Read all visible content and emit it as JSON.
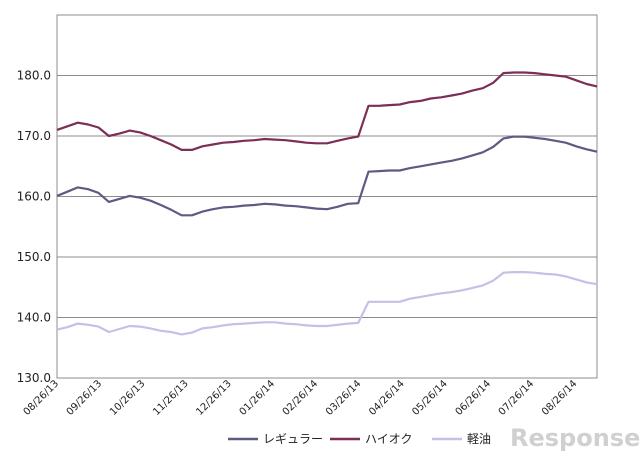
{
  "chart_data": {
    "type": "line",
    "title": "",
    "xlabel": "",
    "ylabel": "",
    "ylim": [
      130,
      190
    ],
    "yticks": [
      "130.0",
      "140.0",
      "150.0",
      "160.0",
      "170.0",
      "180.0"
    ],
    "grid": true,
    "legend_position": "bottom",
    "x_tick_labels": [
      "08/26/13",
      "09/26/13",
      "10/26/13",
      "11/26/13",
      "12/26/13",
      "01/26/14",
      "02/26/14",
      "03/26/14",
      "04/26/14",
      "05/26/14",
      "06/26/14",
      "07/26/14",
      "08/26/14"
    ],
    "series": [
      {
        "name": "レギュラー",
        "color": "#5c5b82",
        "values": [
          160.1,
          160.8,
          161.5,
          161.2,
          160.6,
          159.1,
          159.6,
          160.1,
          159.8,
          159.3,
          158.6,
          157.8,
          156.9,
          156.9,
          157.5,
          157.9,
          158.2,
          158.3,
          158.5,
          158.6,
          158.8,
          158.7,
          158.5,
          158.4,
          158.2,
          158.0,
          157.9,
          158.3,
          158.8,
          158.9,
          164.1,
          164.2,
          164.3,
          164.3,
          164.7,
          165.0,
          165.3,
          165.6,
          165.9,
          166.3,
          166.8,
          167.3,
          168.2,
          169.6,
          169.9,
          169.9,
          169.7,
          169.5,
          169.2,
          168.9,
          168.3,
          167.8,
          167.4
        ]
      },
      {
        "name": "ハイオク",
        "color": "#7d2d56",
        "values": [
          171.0,
          171.6,
          172.2,
          171.9,
          171.4,
          170.0,
          170.4,
          170.9,
          170.6,
          170.0,
          169.3,
          168.6,
          167.7,
          167.7,
          168.3,
          168.6,
          168.9,
          169.0,
          169.2,
          169.3,
          169.5,
          169.4,
          169.3,
          169.1,
          168.9,
          168.8,
          168.8,
          169.2,
          169.6,
          169.9,
          175.0,
          175.0,
          175.1,
          175.2,
          175.6,
          175.8,
          176.2,
          176.4,
          176.7,
          177.0,
          177.5,
          177.9,
          178.8,
          180.4,
          180.5,
          180.5,
          180.4,
          180.2,
          180.0,
          179.8,
          179.2,
          178.6,
          178.2
        ]
      },
      {
        "name": "軽油",
        "color": "#c3c1e6",
        "values": [
          138.0,
          138.4,
          139.0,
          138.8,
          138.5,
          137.6,
          138.1,
          138.6,
          138.5,
          138.2,
          137.8,
          137.6,
          137.2,
          137.5,
          138.2,
          138.4,
          138.7,
          138.9,
          139.0,
          139.1,
          139.2,
          139.2,
          139.0,
          138.9,
          138.7,
          138.6,
          138.6,
          138.8,
          139.0,
          139.1,
          142.6,
          142.6,
          142.6,
          142.6,
          143.1,
          143.4,
          143.7,
          144.0,
          144.2,
          144.5,
          144.9,
          145.3,
          146.1,
          147.4,
          147.5,
          147.5,
          147.4,
          147.2,
          147.1,
          146.8,
          146.3,
          145.8,
          145.5
        ]
      }
    ]
  }
}
